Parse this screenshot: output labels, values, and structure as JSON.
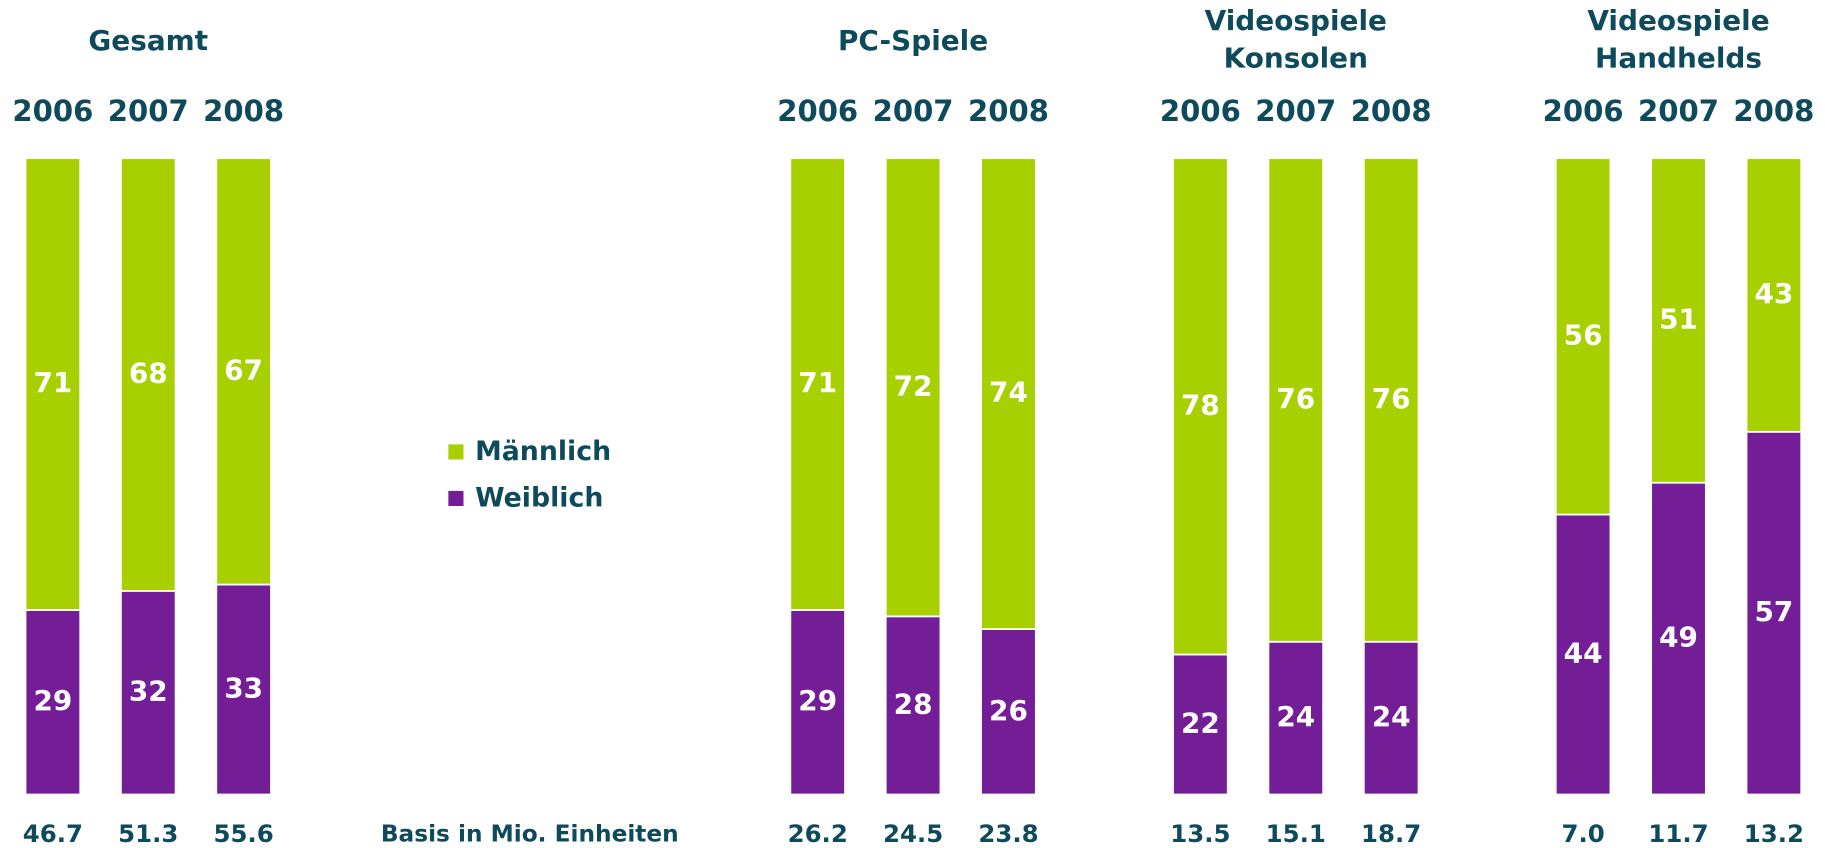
{
  "chart_data": [
    {
      "type": "stacked_bar",
      "title": [
        "Gesamt"
      ],
      "categories": [
        "2006",
        "2007",
        "2008"
      ],
      "series": [
        {
          "name": "Männlich",
          "color": "#a8d000",
          "values": [
            71,
            68,
            67
          ]
        },
        {
          "name": "Weiblich",
          "color": "#731e96",
          "values": [
            29,
            32,
            33
          ]
        }
      ],
      "ylim": [
        0,
        100
      ],
      "base_label": "Basis in Mio. Einheiten",
      "base_values": [
        46.7,
        51.3,
        55.6
      ]
    },
    {
      "type": "stacked_bar",
      "title": [
        "PC-Spiele"
      ],
      "categories": [
        "2006",
        "2007",
        "2008"
      ],
      "series": [
        {
          "name": "Männlich",
          "color": "#a8d000",
          "values": [
            71,
            72,
            74
          ]
        },
        {
          "name": "Weiblich",
          "color": "#731e96",
          "values": [
            29,
            28,
            26
          ]
        }
      ],
      "ylim": [
        0,
        100
      ],
      "base_values": [
        26.2,
        24.5,
        23.8
      ]
    },
    {
      "type": "stacked_bar",
      "title": [
        "Videospiele",
        "Konsolen"
      ],
      "categories": [
        "2006",
        "2007",
        "2008"
      ],
      "series": [
        {
          "name": "Männlich",
          "color": "#a8d000",
          "values": [
            78,
            76,
            76
          ]
        },
        {
          "name": "Weiblich",
          "color": "#731e96",
          "values": [
            22,
            24,
            24
          ]
        }
      ],
      "ylim": [
        0,
        100
      ],
      "base_values": [
        13.5,
        15.1,
        18.7
      ]
    },
    {
      "type": "stacked_bar",
      "title": [
        "Videospiele",
        "Handhelds"
      ],
      "categories": [
        "2006",
        "2007",
        "2008"
      ],
      "series": [
        {
          "name": "Männlich",
          "color": "#a8d000",
          "values": [
            56,
            51,
            43
          ]
        },
        {
          "name": "Weiblich",
          "color": "#731e96",
          "values": [
            44,
            49,
            57
          ]
        }
      ],
      "ylim": [
        0,
        100
      ],
      "base_values": [
        7.0,
        11.7,
        13.2
      ],
      "base_value_labels": [
        "7.0",
        "11.7",
        "13.2"
      ]
    }
  ]
}
